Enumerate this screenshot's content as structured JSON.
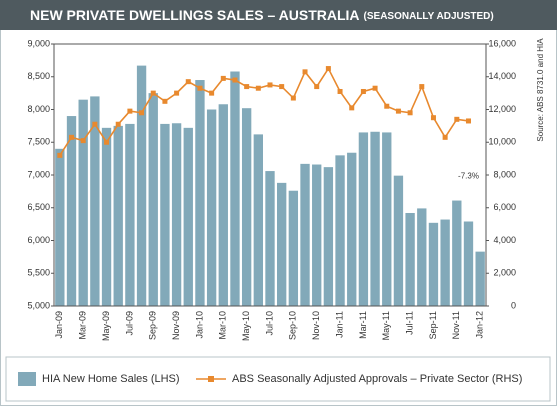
{
  "chart_data": {
    "type": "bar_line",
    "title": "NEW PRIVATE DWELLINGS SALES – AUSTRALIA",
    "subtitle": "(SEASONALLY ADJUSTED)",
    "source": "Source: ABS 8731.0 and HIA",
    "annotation": "-7.3%",
    "categories": [
      "Jan-09",
      null,
      "Mar-09",
      null,
      "May-09",
      null,
      "Jul-09",
      null,
      "Sep-09",
      null,
      "Nov-09",
      null,
      "Jan-10",
      null,
      "Mar-10",
      null,
      "May-10",
      null,
      "Jul-10",
      null,
      "Sep-10",
      null,
      "Nov-10",
      null,
      "Jan-11",
      null,
      "Mar-11",
      null,
      "May-11",
      null,
      "Jul-11",
      null,
      "Sep-11",
      null,
      "Nov-11",
      null,
      "Jan-12"
    ],
    "series": [
      {
        "name": "HIA New Home Sales (LHS)",
        "color": "#82a9b9",
        "axis": "y",
        "values": [
          7400,
          7900,
          8150,
          8200,
          7720,
          7750,
          7780,
          8670,
          8250,
          7780,
          7790,
          7720,
          8450,
          8000,
          8080,
          8580,
          8020,
          7620,
          7060,
          6880,
          6760,
          7170,
          7160,
          7120,
          7300,
          7340,
          7650,
          7660,
          7650,
          6990,
          6420,
          6490,
          6270,
          6320,
          6610,
          6290,
          5830
        ]
      },
      {
        "name": "ABS Seasonally Adjusted Approvals – Private Sector (RHS)",
        "color": "#e8892e",
        "axis": "y2",
        "values": [
          9200,
          10300,
          10100,
          11100,
          10000,
          11100,
          11900,
          11800,
          13000,
          12500,
          13000,
          13700,
          13300,
          13000,
          13900,
          13800,
          13400,
          13300,
          13500,
          13400,
          12700,
          14300,
          13400,
          14500,
          13100,
          12100,
          13100,
          13300,
          12200,
          11900,
          11800,
          13400,
          11500,
          10300,
          11400,
          11300,
          null
        ]
      }
    ],
    "ylim": [
      5000,
      9000
    ],
    "yticks": [
      {
        "value": 5000,
        "label": "5,000"
      },
      {
        "value": 5500,
        "label": "5,500"
      },
      {
        "value": 6000,
        "label": "6,000"
      },
      {
        "value": 6500,
        "label": "6,500"
      },
      {
        "value": 7000,
        "label": "7,000"
      },
      {
        "value": 7500,
        "label": "7,500"
      },
      {
        "value": 8000,
        "label": "8,000"
      },
      {
        "value": 8500,
        "label": "8,500"
      },
      {
        "value": 9000,
        "label": "9,000"
      }
    ],
    "y2lim": [
      0,
      16000
    ],
    "y2ticks": [
      0,
      {
        "value": 2000,
        "label": "2,000"
      },
      {
        "value": 4000,
        "label": "4,000"
      },
      {
        "value": 6000,
        "label": "6,000"
      },
      {
        "value": 8000,
        "label": "8,000"
      },
      {
        "value": 10000,
        "label": "10,000"
      },
      {
        "value": 12000,
        "label": "12,000"
      },
      {
        "value": 14000,
        "label": "14,000"
      },
      {
        "value": 16000,
        "label": "16,000"
      }
    ],
    "grid": false,
    "legend": "bottom"
  }
}
